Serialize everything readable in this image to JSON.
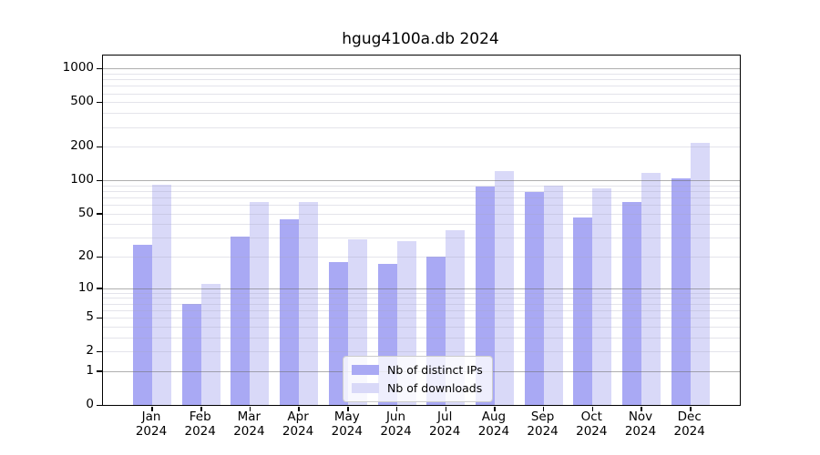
{
  "title": "hgug4100a.db 2024",
  "colors": {
    "bar_distinct_ips": "#a9a9f4",
    "bar_downloads": "#d9d9f8",
    "grid_major": "#b0b0b0",
    "grid_minor": "#e9e9ef",
    "axis": "#000000"
  },
  "legend": {
    "items": [
      {
        "label": "Nb of distinct IPs",
        "color": "#a9a9f4"
      },
      {
        "label": "Nb of downloads",
        "color": "#d9d9f8"
      }
    ]
  },
  "y_axis": {
    "tick_labels": [
      "1000",
      "500",
      "200",
      "100",
      "50",
      "20",
      "10",
      "5",
      "2",
      "1",
      "0"
    ],
    "tick_values": [
      1000,
      500,
      200,
      100,
      50,
      20,
      10,
      5,
      2,
      1,
      0
    ]
  },
  "x_axis": {
    "months": [
      {
        "month": "Jan",
        "year": "2024"
      },
      {
        "month": "Feb",
        "year": "2024"
      },
      {
        "month": "Mar",
        "year": "2024"
      },
      {
        "month": "Apr",
        "year": "2024"
      },
      {
        "month": "May",
        "year": "2024"
      },
      {
        "month": "Jun",
        "year": "2024"
      },
      {
        "month": "Jul",
        "year": "2024"
      },
      {
        "month": "Aug",
        "year": "2024"
      },
      {
        "month": "Sep",
        "year": "2024"
      },
      {
        "month": "Oct",
        "year": "2024"
      },
      {
        "month": "Nov",
        "year": "2024"
      },
      {
        "month": "Dec",
        "year": "2024"
      }
    ]
  },
  "chart_data": {
    "type": "bar",
    "title": "hgug4100a.db 2024",
    "categories": [
      "Jan 2024",
      "Feb 2024",
      "Mar 2024",
      "Apr 2024",
      "May 2024",
      "Jun 2024",
      "Jul 2024",
      "Aug 2024",
      "Sep 2024",
      "Oct 2024",
      "Nov 2024",
      "Dec 2024"
    ],
    "series": [
      {
        "name": "Nb of distinct IPs",
        "color": "#a9a9f4",
        "values": [
          26,
          7,
          31,
          44,
          18,
          17,
          20,
          88,
          79,
          46,
          64,
          104
        ]
      },
      {
        "name": "Nb of downloads",
        "color": "#d9d9f8",
        "values": [
          91,
          11,
          64,
          64,
          29,
          28,
          35,
          120,
          89,
          84,
          117,
          215
        ]
      }
    ],
    "xlabel": "",
    "ylabel": "",
    "y_scale": "log1p",
    "y_tick_values": [
      0,
      1,
      2,
      5,
      10,
      20,
      50,
      100,
      200,
      500,
      1000
    ],
    "ylim": [
      0,
      1300
    ],
    "grid": "horizontal; dark lines at 1,10,100,1000; faint lines at 2-9 mantissas",
    "legend_position": "inside plot, bottom center"
  }
}
